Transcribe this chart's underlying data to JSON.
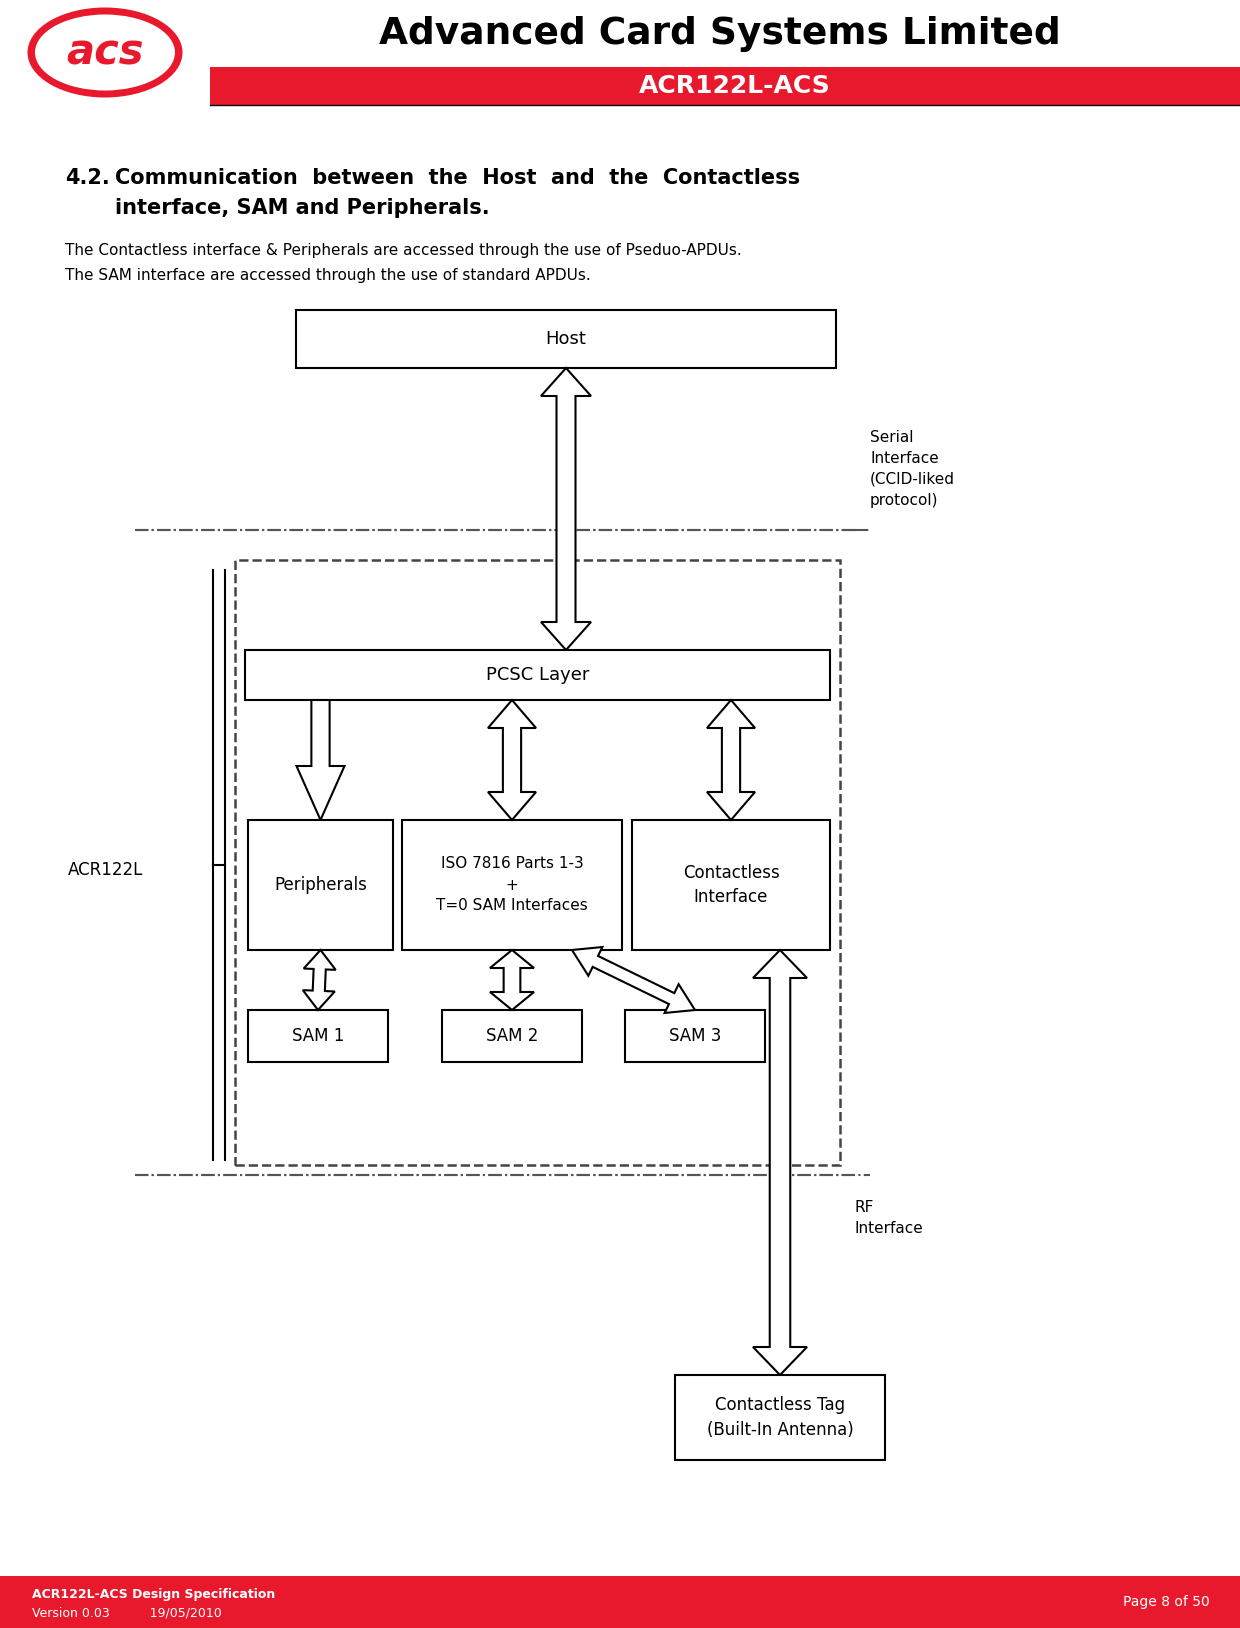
{
  "title_company": "Advanced Card Systems Limited",
  "title_product": "ACR122L-ACS",
  "header_red": "#E8192C",
  "footer_red": "#E8192C",
  "footer_text_right": "Page 8 of 50",
  "para1": "The Contactless interface & Peripherals are accessed through the use of Pseduo-APDUs.",
  "para2": "The SAM interface are accessed through the use of standard APDUs.",
  "box_host_label": "Host",
  "box_pcsc_label": "PCSC Layer",
  "box_peripherals_label": "Peripherals",
  "box_iso_label": "ISO 7816 Parts 1-3\n+\nT=0 SAM Interfaces",
  "box_contactless_label": "Contactless\nInterface",
  "box_sam1_label": "SAM 1",
  "box_sam2_label": "SAM 2",
  "box_sam3_label": "SAM 3",
  "box_tag_label": "Contactless Tag\n(Built-In Antenna)",
  "label_acr122l": "ACR122L",
  "label_serial": "Serial\nInterface\n(CCID-liked\nprotocol)",
  "label_rf": "RF\nInterface",
  "bg_color": "#FFFFFF",
  "header_line_color": "#000000",
  "box_border_color": "#000000",
  "dash_color": "#666666",
  "arrow_color": "#000000",
  "section_num": "4.2.",
  "section_title1": "Communication  between  the  Host  and  the  Contactless",
  "section_title2": "interface, SAM and Peripherals.",
  "footer_bold": "ACR122L-ACS Design Specification",
  "footer_version": "Version 0.03",
  "footer_date": "19/05/2010"
}
